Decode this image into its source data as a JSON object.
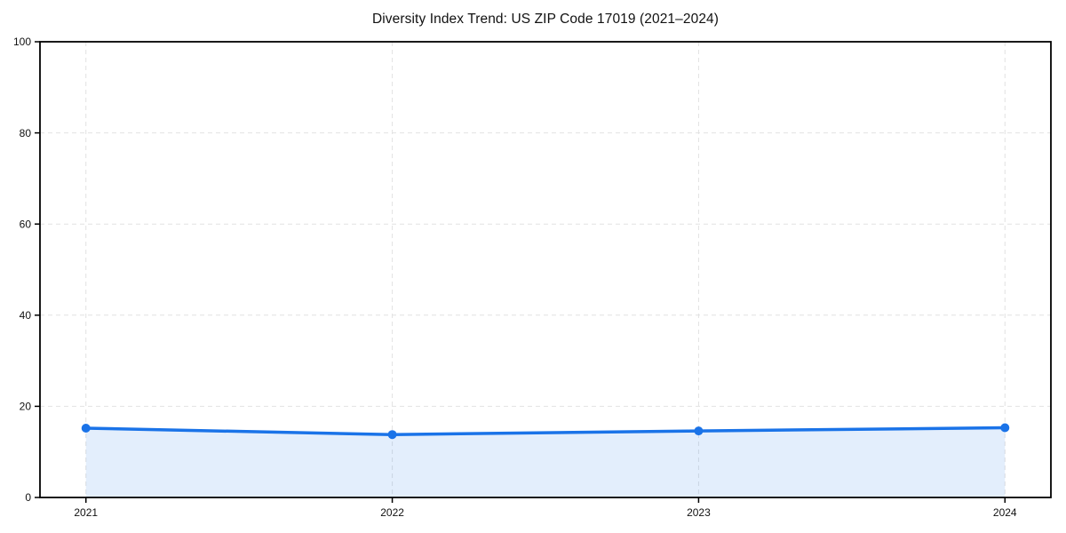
{
  "page": {
    "background_color": "#ffffff"
  },
  "chart_data": {
    "type": "line",
    "title": "Diversity Index Trend: US ZIP Code 17019 (2021–2024)",
    "x": [
      2021,
      2022,
      2023,
      2024
    ],
    "x_labels": [
      "2021",
      "2022",
      "2023",
      "2024"
    ],
    "series": [
      {
        "name": "Diversity Index",
        "values": [
          15.2,
          13.8,
          14.6,
          15.3
        ]
      }
    ],
    "xlabel": "",
    "ylabel": "",
    "xlim": [
      2020.85,
      2024.15
    ],
    "ylim": [
      0,
      100
    ],
    "yticks": [
      0,
      20,
      40,
      60,
      80,
      100
    ],
    "ytick_labels": [
      "0",
      "20",
      "40",
      "60",
      "80",
      "100"
    ],
    "grid": true,
    "grid_style": "dashed",
    "legend": "none",
    "area_fill": true,
    "marker": "circle",
    "colors": {
      "line": "#1a73e8",
      "fill": "#1a73e8",
      "fill_opacity": 0.12,
      "grid": "#e2e2e2",
      "axis": "#000000",
      "text": "#111111",
      "background": "#ffffff"
    }
  }
}
